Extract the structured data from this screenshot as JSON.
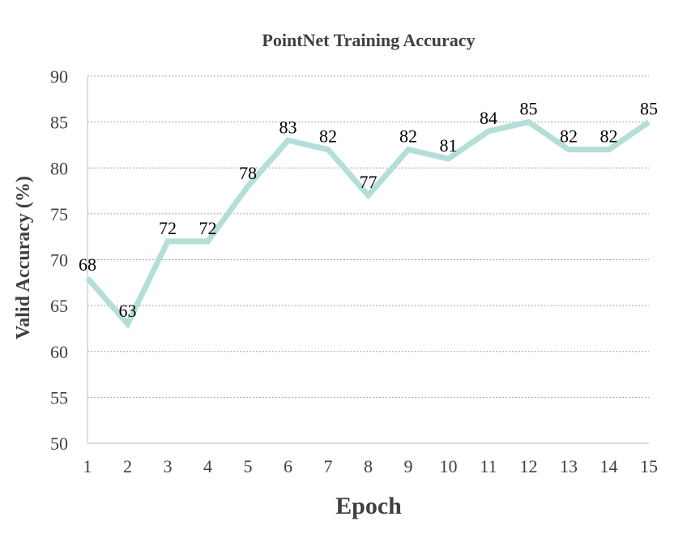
{
  "chart_data": {
    "type": "line",
    "title": "PointNet Training Accuracy",
    "xlabel": "Epoch",
    "ylabel": "Valid Accuracy (%)",
    "x": [
      1,
      2,
      3,
      4,
      5,
      6,
      7,
      8,
      9,
      10,
      11,
      12,
      13,
      14,
      15
    ],
    "series": [
      {
        "values": [
          68,
          63,
          72,
          72,
          78,
          83,
          82,
          77,
          82,
          81,
          84,
          85,
          82,
          82,
          85
        ]
      }
    ],
    "ylim": [
      50,
      90
    ],
    "yticks": [
      50,
      55,
      60,
      65,
      70,
      75,
      80,
      85,
      90
    ],
    "grid": true,
    "data_labels": true,
    "line_color": "#b3dfd8"
  }
}
